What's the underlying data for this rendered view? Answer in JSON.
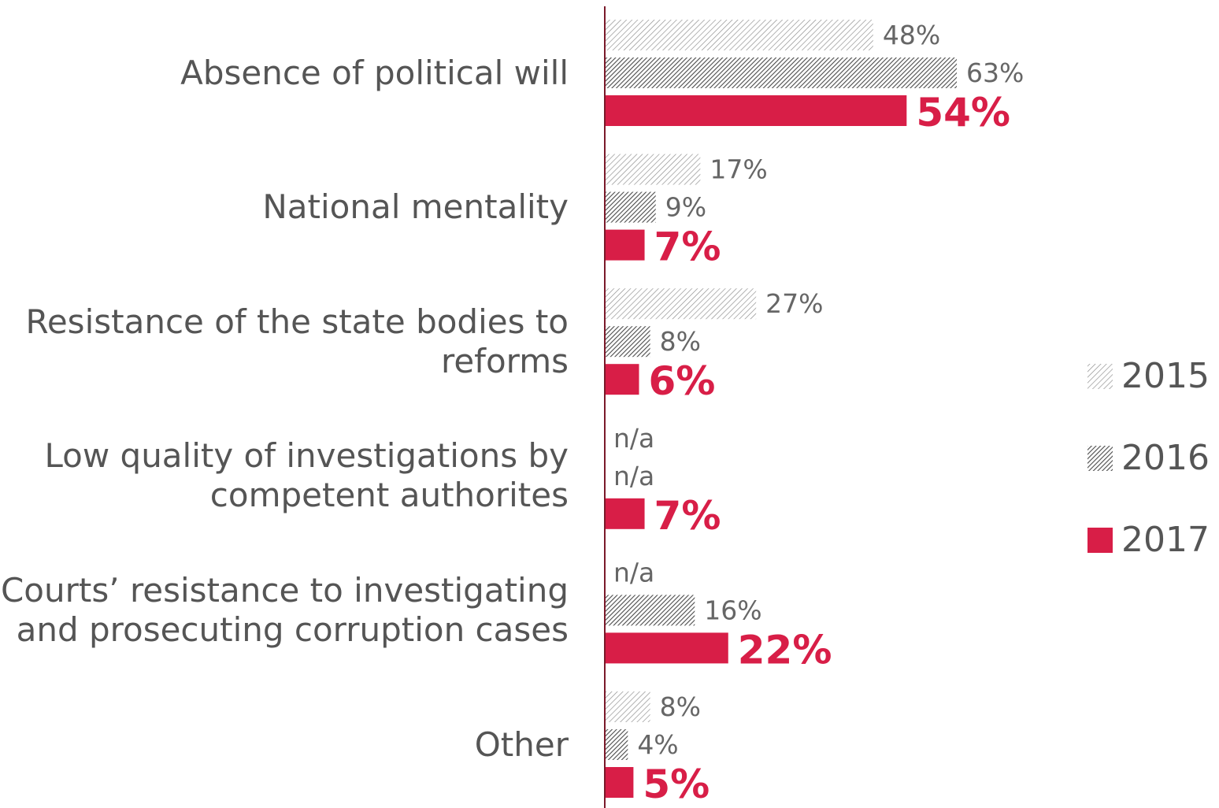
{
  "chart_data": {
    "type": "bar",
    "orientation": "horizontal",
    "categories": [
      "Absence of political will",
      "National mentality",
      "Resistance of the state bodies to\nreforms",
      "Low quality of investigations by\ncompetent authorites",
      "Courts’ resistance to investigating\nand prosecuting corruption cases",
      "Other"
    ],
    "series": [
      {
        "name": "2015",
        "color": "#8a8a8a",
        "pattern": "sparse-hatch",
        "values": [
          48,
          17,
          27,
          null,
          null,
          8
        ],
        "value_labels": [
          "48%",
          "17%",
          "27%",
          "n/a",
          "n/a",
          "8%"
        ]
      },
      {
        "name": "2016",
        "color": "#4a4a4a",
        "pattern": "dense-hatch",
        "values": [
          63,
          9,
          8,
          null,
          16,
          4
        ],
        "value_labels": [
          "63%",
          "9%",
          "8%",
          "n/a",
          "16%",
          "4%"
        ]
      },
      {
        "name": "2017",
        "color": "#d81e47",
        "pattern": "solid",
        "values": [
          54,
          7,
          6,
          7,
          22,
          5
        ],
        "value_labels": [
          "54%",
          "7%",
          "6%",
          "7%",
          "22%",
          "5%"
        ]
      }
    ],
    "legend": "right"
  }
}
